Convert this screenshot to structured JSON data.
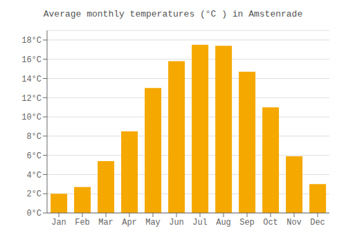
{
  "chart_data": {
    "type": "bar",
    "title": "Average monthly temperatures (°C ) in Amstenrade",
    "categories": [
      "Jan",
      "Feb",
      "Mar",
      "Apr",
      "May",
      "Jun",
      "Jul",
      "Aug",
      "Sep",
      "Oct",
      "Nov",
      "Dec"
    ],
    "values": [
      2.0,
      2.7,
      5.4,
      8.5,
      13.0,
      15.8,
      17.5,
      17.4,
      14.7,
      11.0,
      5.9,
      3.0
    ],
    "color": "#F5A800",
    "ylim": [
      0,
      19
    ],
    "yticks": [
      {
        "value": 0,
        "label": "0°C"
      },
      {
        "value": 2,
        "label": "2°C"
      },
      {
        "value": 4,
        "label": "4°C"
      },
      {
        "value": 6,
        "label": "6°C"
      },
      {
        "value": 8,
        "label": "8°C"
      },
      {
        "value": 10,
        "label": "10°C"
      },
      {
        "value": 12,
        "label": "12°C"
      },
      {
        "value": 14,
        "label": "14°C"
      },
      {
        "value": 16,
        "label": "16°C"
      },
      {
        "value": 18,
        "label": "18°C"
      }
    ],
    "grid": true
  }
}
